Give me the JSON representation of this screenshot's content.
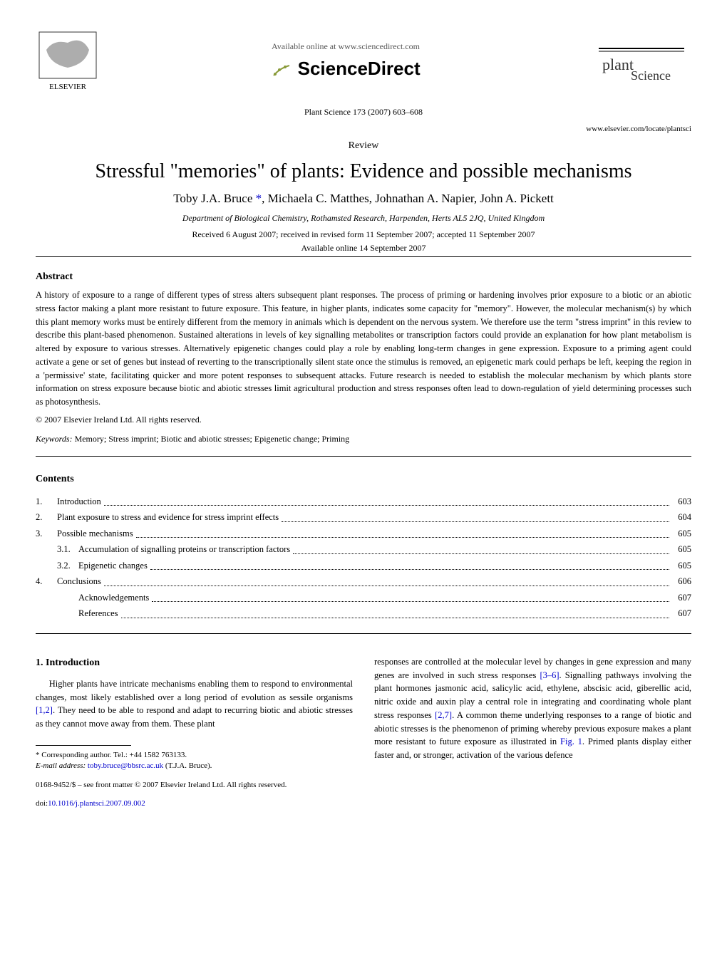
{
  "header": {
    "available_online": "Available online at www.sciencedirect.com",
    "sciencedirect": "ScienceDirect",
    "journal_citation": "Plant Science 173 (2007) 603–608",
    "journal_url": "www.elsevier.com/locate/plantsci",
    "elsevier_label": "ELSEVIER",
    "plant_science_label": "PLANT SCIENCE"
  },
  "article": {
    "type_label": "Review",
    "title": "Stressful \"memories\" of plants: Evidence and possible mechanisms",
    "authors": "Toby J.A. Bruce *, Michaela C. Matthes, Johnathan A. Napier, John A. Pickett",
    "affiliation": "Department of Biological Chemistry, Rothamsted Research, Harpenden, Herts AL5 2JQ, United Kingdom",
    "received": "Received 6 August 2007; received in revised form 11 September 2007; accepted 11 September 2007",
    "available_date": "Available online 14 September 2007"
  },
  "abstract": {
    "heading": "Abstract",
    "text": "A history of exposure to a range of different types of stress alters subsequent plant responses. The process of priming or hardening involves prior exposure to a biotic or an abiotic stress factor making a plant more resistant to future exposure. This feature, in higher plants, indicates some capacity for \"memory\". However, the molecular mechanism(s) by which this plant memory works must be entirely different from the memory in animals which is dependent on the nervous system. We therefore use the term \"stress imprint\" in this review to describe this plant-based phenomenon. Sustained alterations in levels of key signalling metabolites or transcription factors could provide an explanation for how plant metabolism is altered by exposure to various stresses. Alternatively epigenetic changes could play a role by enabling long-term changes in gene expression. Exposure to a priming agent could activate a gene or set of genes but instead of reverting to the transcriptionally silent state once the stimulus is removed, an epigenetic mark could perhaps be left, keeping the region in a 'permissive' state, facilitating quicker and more potent responses to subsequent attacks. Future research is needed to establish the molecular mechanism by which plants store information on stress exposure because biotic and abiotic stresses limit agricultural production and stress responses often lead to down-regulation of yield determining processes such as photosynthesis.",
    "copyright": "© 2007 Elsevier Ireland Ltd. All rights reserved.",
    "keywords_label": "Keywords:",
    "keywords": " Memory; Stress imprint; Biotic and abiotic stresses; Epigenetic change; Priming"
  },
  "contents": {
    "heading": "Contents",
    "items": [
      {
        "num": "1.",
        "label": "Introduction",
        "page": "603",
        "indent": 0
      },
      {
        "num": "2.",
        "label": "Plant exposure to stress and evidence for stress imprint effects",
        "page": "604",
        "indent": 0
      },
      {
        "num": "3.",
        "label": "Possible mechanisms",
        "page": "605",
        "indent": 0
      },
      {
        "num": "3.1.",
        "label": "Accumulation of signalling proteins or transcription factors",
        "page": "605",
        "indent": 1
      },
      {
        "num": "3.2.",
        "label": "Epigenetic changes",
        "page": "605",
        "indent": 1
      },
      {
        "num": "4.",
        "label": "Conclusions",
        "page": "606",
        "indent": 0
      },
      {
        "num": "",
        "label": "Acknowledgements",
        "page": "607",
        "indent": 1
      },
      {
        "num": "",
        "label": "References",
        "page": "607",
        "indent": 1
      }
    ]
  },
  "body": {
    "intro_heading": "1. Introduction",
    "col1_text": "Higher plants have intricate mechanisms enabling them to respond to environmental changes, most likely established over a long period of evolution as sessile organisms [1,2]. They need to be able to respond and adapt to recurring biotic and abiotic stresses as they cannot move away from them. These plant",
    "col2_text": "responses are controlled at the molecular level by changes in gene expression and many genes are involved in such stress responses [3–6]. Signalling pathways involving the plant hormones jasmonic acid, salicylic acid, ethylene, abscisic acid, giberellic acid, nitric oxide and auxin play a central role in integrating and coordinating whole plant stress responses [2,7]. A common theme underlying responses to a range of biotic and abiotic stresses is the phenomenon of priming whereby previous exposure makes a plant more resistant to future exposure as illustrated in Fig. 1. Primed plants display either faster and, or stronger, activation of the various defence"
  },
  "footer": {
    "corresponding": "* Corresponding author. Tel.: +44 1582 763133.",
    "email_label": "E-mail address:",
    "email": " toby.bruce@bbsrc.ac.uk",
    "email_suffix": " (T.J.A. Bruce).",
    "front_matter": "0168-9452/$ – see front matter © 2007 Elsevier Ireland Ltd. All rights reserved.",
    "doi_label": "doi:",
    "doi": "10.1016/j.plantsci.2007.09.002"
  }
}
